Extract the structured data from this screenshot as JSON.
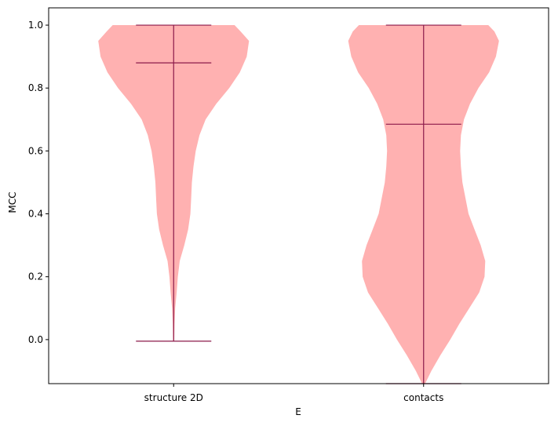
{
  "chart_data": {
    "type": "violin",
    "xlabel": "E",
    "ylabel": "MCC",
    "ylim": [
      -0.14,
      1.055
    ],
    "yticks": [
      0.0,
      0.2,
      0.4,
      0.6,
      0.8,
      1.0
    ],
    "ytick_labels": [
      "0.0",
      "0.2",
      "0.4",
      "0.6",
      "0.8",
      "1.0"
    ],
    "categories": [
      "structure 2D",
      "contacts"
    ],
    "fill_color": "#ffb1b1",
    "line_color": "#8b1a4a",
    "grid": false,
    "violins": [
      {
        "category": "structure 2D",
        "min": -0.005,
        "max": 1.0,
        "median": 0.88,
        "density": [
          [
            -0.005,
            0.008
          ],
          [
            0.05,
            0.012
          ],
          [
            0.1,
            0.02
          ],
          [
            0.15,
            0.04
          ],
          [
            0.2,
            0.055
          ],
          [
            0.25,
            0.08
          ],
          [
            0.3,
            0.14
          ],
          [
            0.35,
            0.19
          ],
          [
            0.4,
            0.22
          ],
          [
            0.45,
            0.23
          ],
          [
            0.5,
            0.24
          ],
          [
            0.55,
            0.26
          ],
          [
            0.6,
            0.29
          ],
          [
            0.65,
            0.34
          ],
          [
            0.7,
            0.42
          ],
          [
            0.75,
            0.56
          ],
          [
            0.8,
            0.73
          ],
          [
            0.85,
            0.87
          ],
          [
            0.9,
            0.96
          ],
          [
            0.95,
            0.99
          ],
          [
            0.98,
            0.88
          ],
          [
            1.0,
            0.8
          ]
        ]
      },
      {
        "category": "contacts",
        "min": -0.14,
        "max": 1.0,
        "median": 0.685,
        "density": [
          [
            -0.14,
            0.02
          ],
          [
            -0.1,
            0.1
          ],
          [
            -0.05,
            0.22
          ],
          [
            0.0,
            0.35
          ],
          [
            0.05,
            0.47
          ],
          [
            0.1,
            0.6
          ],
          [
            0.15,
            0.73
          ],
          [
            0.2,
            0.8
          ],
          [
            0.25,
            0.81
          ],
          [
            0.3,
            0.75
          ],
          [
            0.35,
            0.67
          ],
          [
            0.4,
            0.59
          ],
          [
            0.45,
            0.55
          ],
          [
            0.5,
            0.51
          ],
          [
            0.55,
            0.49
          ],
          [
            0.6,
            0.48
          ],
          [
            0.65,
            0.49
          ],
          [
            0.7,
            0.53
          ],
          [
            0.75,
            0.61
          ],
          [
            0.8,
            0.72
          ],
          [
            0.85,
            0.86
          ],
          [
            0.9,
            0.95
          ],
          [
            0.95,
            0.99
          ],
          [
            0.98,
            0.93
          ],
          [
            1.0,
            0.85
          ]
        ]
      }
    ]
  }
}
